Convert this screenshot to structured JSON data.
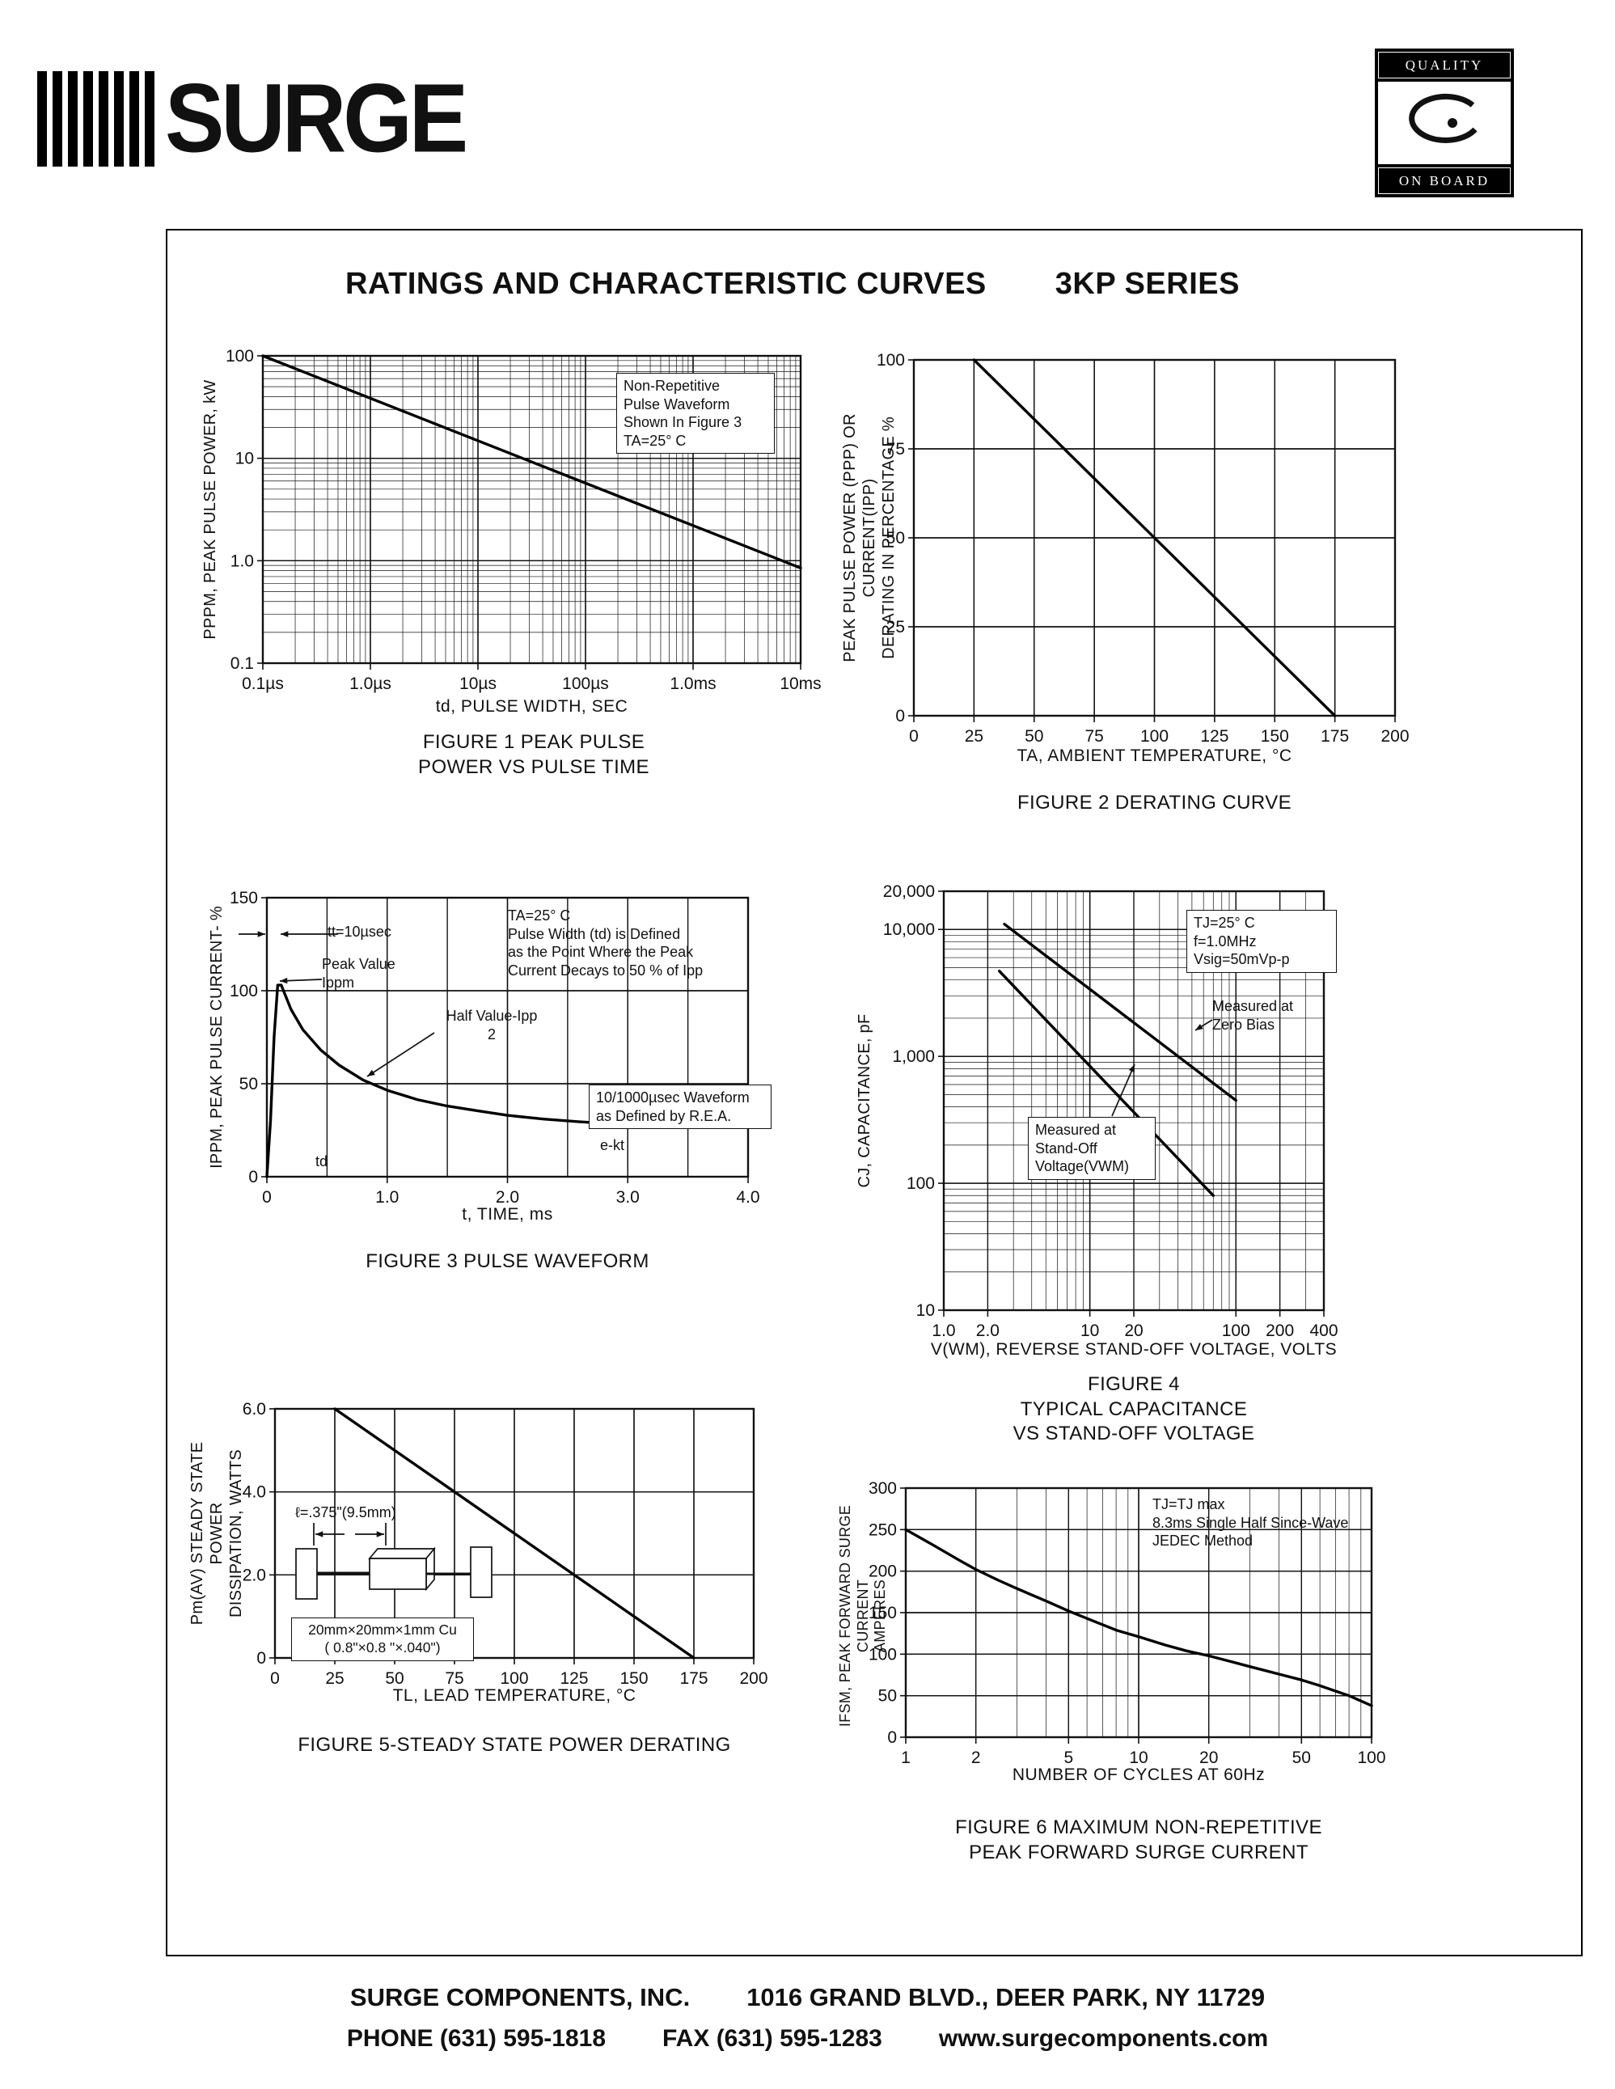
{
  "page": {
    "title": "RATINGS AND CHARACTERISTIC CURVES",
    "series_label": "3KP SERIES"
  },
  "header": {
    "logo_text": "SURGE",
    "quality_logo": {
      "top": "QUALITY",
      "bottom": "ON BOARD"
    }
  },
  "footer": {
    "company": "SURGE COMPONENTS, INC.",
    "address": "1016 GRAND BLVD., DEER PARK, NY  11729",
    "phone": "PHONE (631) 595-1818",
    "fax": "FAX  (631) 595-1283",
    "web": "www.surgecomponents.com"
  },
  "chart_data": [
    {
      "name": "figure-1",
      "type": "line",
      "title": "FIGURE 1 PEAK PULSE\nPOWER VS PULSE TIME",
      "xlabel": "td, PULSE WIDTH, SEC",
      "ylabel": "PPPM, PEAK PULSE POWER, kW",
      "x": {
        "scale": "log",
        "min": 1e-07,
        "max": 0.01,
        "ticks": [
          [
            1e-07,
            "0.1µs"
          ],
          [
            1e-06,
            "1.0µs"
          ],
          [
            1e-05,
            "10µs"
          ],
          [
            0.0001,
            "100µs"
          ],
          [
            0.001,
            "1.0ms"
          ],
          [
            0.01,
            "10ms"
          ]
        ]
      },
      "y": {
        "scale": "log",
        "min": 0.1,
        "max": 100,
        "ticks": [
          [
            0.1,
            "0.1"
          ],
          [
            1,
            "1.0"
          ],
          [
            10,
            "10"
          ],
          [
            100,
            "100"
          ]
        ]
      },
      "series": [
        {
          "name": "peak-pulse-power-kw",
          "points": [
            [
              1e-07,
              100
            ],
            [
              0.01,
              0.85
            ]
          ]
        }
      ],
      "annotations": {
        "note": "Non-Repetitive\nPulse Waveform\nShown In Figure 3\nTA=25° C"
      }
    },
    {
      "name": "figure-2",
      "type": "line",
      "title": "FIGURE 2 DERATING CURVE",
      "xlabel": "TA, AMBIENT  TEMPERATURE, °C",
      "ylabel": "PEAK PULSE POWER (PPP) OR CURRENT(IPP)\nDERATING IN PERCENTAGE %",
      "x": {
        "scale": "linear",
        "min": 0,
        "max": 200,
        "step": 25,
        "ticks": [
          [
            0,
            "0"
          ],
          [
            25,
            "25"
          ],
          [
            50,
            "50"
          ],
          [
            75,
            "75"
          ],
          [
            100,
            "100"
          ],
          [
            125,
            "125"
          ],
          [
            150,
            "150"
          ],
          [
            175,
            "175"
          ],
          [
            200,
            "200"
          ]
        ]
      },
      "y": {
        "scale": "linear",
        "min": 0,
        "max": 100,
        "step": 25,
        "ticks": [
          [
            0,
            "0"
          ],
          [
            25,
            "25"
          ],
          [
            50,
            "50"
          ],
          [
            75,
            "75"
          ],
          [
            100,
            "100"
          ]
        ]
      },
      "series": [
        {
          "name": "derating-percent",
          "points": [
            [
              25,
              100
            ],
            [
              175,
              0
            ]
          ]
        }
      ],
      "annotations": {}
    },
    {
      "name": "figure-3",
      "type": "line",
      "title": "FIGURE 3  PULSE WAVEFORM",
      "xlabel": "t, TIME, ms",
      "ylabel": "IPPM, PEAK PULSE CURRENT- %",
      "x": {
        "scale": "linear",
        "min": 0,
        "max": 4,
        "step": 0.5,
        "ticks": [
          [
            0,
            "0"
          ],
          [
            1,
            "1.0"
          ],
          [
            2,
            "2.0"
          ],
          [
            3,
            "3.0"
          ],
          [
            4,
            "4.0"
          ]
        ]
      },
      "y": {
        "scale": "linear",
        "min": 0,
        "max": 150,
        "step": 50,
        "ticks": [
          [
            0,
            "0"
          ],
          [
            50,
            "50"
          ],
          [
            100,
            "100"
          ],
          [
            150,
            "150"
          ]
        ]
      },
      "series": [
        {
          "name": "pulse-waveform-percent",
          "points": [
            [
              0,
              0
            ],
            [
              0.03,
              30
            ],
            [
              0.06,
              75
            ],
            [
              0.09,
              103
            ],
            [
              0.12,
              103
            ],
            [
              0.2,
              90
            ],
            [
              0.3,
              79
            ],
            [
              0.45,
              68
            ],
            [
              0.6,
              60
            ],
            [
              0.8,
              52
            ],
            [
              1.0,
              46.5
            ],
            [
              1.25,
              41.5
            ],
            [
              1.5,
              38
            ],
            [
              1.75,
              35.5
            ],
            [
              2.0,
              33
            ],
            [
              2.3,
              31
            ],
            [
              2.6,
              29.5
            ],
            [
              3.0,
              28
            ],
            [
              3.15,
              27.7
            ]
          ]
        }
      ],
      "annotations": {
        "conditions": "TA=25° C\nPulse Width (td) is Defined\nas the Point Where the Peak\nCurrent Decays to 50 % of Ipp",
        "rise_time": "tt=10µsec",
        "peak_value": "Peak Value\nIppm",
        "half_value": "Half Value-Ipp\n2",
        "waveform_def": "10/1000µsec Waveform\nas Defined by R.E.A.",
        "decay": "e-kt",
        "pulse_width": "td"
      }
    },
    {
      "name": "figure-4",
      "type": "line",
      "title": "FIGURE 4\nTYPICAL CAPACITANCE\nVS STAND-OFF VOLTAGE",
      "xlabel": "V(WM), REVERSE STAND-OFF VOLTAGE, VOLTS",
      "ylabel": "CJ, CAPACITANCE, pF",
      "x": {
        "scale": "log",
        "min": 1,
        "max": 400,
        "ticks": [
          [
            1,
            "1.0"
          ],
          [
            2,
            "2.0"
          ],
          [
            10,
            "10"
          ],
          [
            20,
            "20"
          ],
          [
            100,
            "100"
          ],
          [
            200,
            "200"
          ],
          [
            400,
            "400"
          ]
        ]
      },
      "y": {
        "scale": "log",
        "min": 10,
        "max": 20000,
        "ticks": [
          [
            10,
            "10"
          ],
          [
            100,
            "100"
          ],
          [
            1000,
            "1,000"
          ],
          [
            10000,
            "10,000"
          ],
          [
            20000,
            "20,000"
          ]
        ]
      },
      "series": [
        {
          "name": "capacitance-zero-bias",
          "points": [
            [
              2.6,
              11000
            ],
            [
              100,
              450
            ]
          ]
        },
        {
          "name": "capacitance-standoff-voltage",
          "points": [
            [
              2.4,
              4700
            ],
            [
              70,
              80
            ]
          ]
        }
      ],
      "annotations": {
        "conditions": "TJ=25° C\nf=1.0MHz\nVsig=50mVp-p",
        "zero_bias": "Measured at\nZero Bias",
        "standoff": "Measured at\nStand-Off\nVoltage(VWM)"
      }
    },
    {
      "name": "figure-5",
      "type": "line",
      "title": "FIGURE 5-STEADY STATE POWER DERATING",
      "xlabel": "TL, LEAD TEMPERATURE, °C",
      "ylabel": "Pm(AV) STEADY STATE POWER\nDISSIPATION, WATTS",
      "x": {
        "scale": "linear",
        "min": 0,
        "max": 200,
        "step": 25,
        "ticks": [
          [
            0,
            "0"
          ],
          [
            25,
            "25"
          ],
          [
            50,
            "50"
          ],
          [
            75,
            "75"
          ],
          [
            100,
            "100"
          ],
          [
            125,
            "125"
          ],
          [
            150,
            "150"
          ],
          [
            175,
            "175"
          ],
          [
            200,
            "200"
          ]
        ]
      },
      "y": {
        "scale": "linear",
        "min": 0,
        "max": 6,
        "step": 2,
        "ticks": [
          [
            0,
            "0"
          ],
          [
            2,
            "2.0"
          ],
          [
            4,
            "4.0"
          ],
          [
            6,
            "6.0"
          ]
        ]
      },
      "series": [
        {
          "name": "steady-state-power-watts",
          "points": [
            [
              25,
              6
            ],
            [
              175,
              0
            ]
          ]
        }
      ],
      "annotations": {
        "lead_length": "ℓ=.375\"(9.5mm)",
        "plate": "20mm×20mm×1mm Cu\n( 0.8\"×0.8 \"×.040\")"
      }
    },
    {
      "name": "figure-6",
      "type": "line",
      "title": "FIGURE 6  MAXIMUM NON-REPETITIVE\nPEAK FORWARD SURGE CURRENT",
      "xlabel": "NUMBER OF CYCLES AT 60Hz",
      "ylabel": "IFSM, PEAK FORWARD SURGE CURRENT\nAMPERES",
      "x": {
        "scale": "log",
        "min": 1,
        "max": 100,
        "ticks": [
          [
            1,
            "1"
          ],
          [
            2,
            "2"
          ],
          [
            5,
            "5"
          ],
          [
            10,
            "10"
          ],
          [
            20,
            "20"
          ],
          [
            50,
            "50"
          ],
          [
            100,
            "100"
          ]
        ]
      },
      "y": {
        "scale": "linear",
        "min": 0,
        "max": 300,
        "step": 50,
        "ticks": [
          [
            0,
            "0"
          ],
          [
            50,
            "50"
          ],
          [
            100,
            "100"
          ],
          [
            150,
            "150"
          ],
          [
            200,
            "200"
          ],
          [
            250,
            "250"
          ],
          [
            300,
            "300"
          ]
        ]
      },
      "series": [
        {
          "name": "peak-forward-surge-current",
          "points": [
            [
              1,
              250
            ],
            [
              1.3,
              232
            ],
            [
              1.7,
              213
            ],
            [
              2,
              202
            ],
            [
              2.5,
              189
            ],
            [
              3,
              179
            ],
            [
              4,
              164
            ],
            [
              5,
              152
            ],
            [
              6,
              143
            ],
            [
              8,
              129
            ],
            [
              10,
              121
            ],
            [
              13,
              111
            ],
            [
              16,
              104
            ],
            [
              20,
              98
            ],
            [
              25,
              91
            ],
            [
              30,
              85
            ],
            [
              40,
              76
            ],
            [
              50,
              69
            ],
            [
              60,
              62
            ],
            [
              80,
              50
            ],
            [
              100,
              38
            ]
          ]
        }
      ],
      "annotations": {
        "conditions": "TJ=TJ max\n8.3ms Single Half Since-Wave\nJEDEC Method"
      }
    }
  ]
}
